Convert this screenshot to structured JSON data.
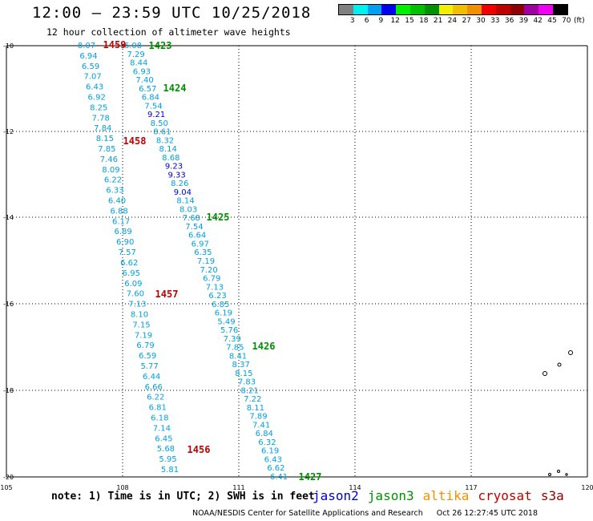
{
  "header": {
    "title": "12:00 — 23:59 UTC 10/25/2018",
    "subtitle": "12 hour collection of altimeter wave heights"
  },
  "legend": {
    "colors": [
      "#808080",
      "#00f0f0",
      "#00a0f0",
      "#0000f0",
      "#00f000",
      "#00c000",
      "#009000",
      "#f0f000",
      "#f0c000",
      "#f09000",
      "#f00000",
      "#c00000",
      "#900000",
      "#a000a0",
      "#f000f0",
      "#000000"
    ],
    "labels": [
      "3",
      "6",
      "9",
      "12",
      "15",
      "18",
      "21",
      "24",
      "27",
      "30",
      "33",
      "36",
      "39",
      "42",
      "45",
      "70",
      "(ft)"
    ]
  },
  "axes": {
    "x_ticks": [
      "105",
      "108",
      "111",
      "114",
      "117",
      "120"
    ],
    "y_ticks": [
      "-10",
      "-12",
      "-14",
      "-16",
      "-18",
      "-20"
    ]
  },
  "tracks": [
    {
      "satellite": "cryosat",
      "values": [
        "8.07",
        "6.94",
        "6.59",
        "7.07",
        "6.43",
        "6.92",
        "8.25",
        "7.78",
        "7.84",
        "8.15",
        "7.85",
        "7.46",
        "8.09",
        "6.22",
        "6.33",
        "6.40",
        "6.88",
        "6.17",
        "6.89",
        "6.90",
        "7.57",
        "6.62",
        "6.95",
        "6.09",
        "7.60",
        "7.13",
        "8.10",
        "7.15",
        "7.19",
        "6.79",
        "6.59",
        "5.77",
        "6.44",
        "6.66",
        "6.22",
        "6.81",
        "6.18",
        "7.14",
        "6.45",
        "5.68",
        "5.95",
        "5.81"
      ]
    },
    {
      "satellite": "jason3",
      "values": [
        "6.08",
        "7.29",
        "8.44",
        "6.93",
        "7.40",
        "6.57",
        "6.84",
        "7.54",
        "9.21",
        "8.50",
        "8.61",
        "8.32",
        "8.14",
        "8.68",
        "9.23",
        "9.33",
        "8.26",
        "9.04",
        "8.14",
        "8.03",
        "7.68",
        "7.54",
        "6.64",
        "6.97",
        "6.35",
        "7.19",
        "7.20",
        "6.79",
        "7.13",
        "6.23",
        "6.85",
        "6.19",
        "5.49",
        "5.76",
        "7.39",
        "7.85",
        "8.41",
        "8.37",
        "8.15",
        "7.83",
        "8.21",
        "7.22",
        "8.11",
        "7.89",
        "7.41",
        "6.84",
        "6.32",
        "6.19",
        "6.43",
        "6.62",
        "6.41"
      ]
    }
  ],
  "time_labels": [
    {
      "text": "1459",
      "satellite": "cryosat"
    },
    {
      "text": "1458",
      "satellite": "cryosat"
    },
    {
      "text": "1457",
      "satellite": "cryosat"
    },
    {
      "text": "1456",
      "satellite": "cryosat"
    },
    {
      "text": "1423",
      "satellite": "jason3"
    },
    {
      "text": "1424",
      "satellite": "jason3"
    },
    {
      "text": "1425",
      "satellite": "jason3"
    },
    {
      "text": "1426",
      "satellite": "jason3"
    },
    {
      "text": "1427",
      "satellite": "jason3"
    }
  ],
  "note": "note: 1) Time is in UTC; 2) SWH is in feet",
  "satellites": [
    {
      "name": "jason2",
      "color": "#0000d8"
    },
    {
      "name": "jason3",
      "color": "#009000"
    },
    {
      "name": "altika",
      "color": "#f09000"
    },
    {
      "name": "cryosat",
      "color": "#c00000"
    },
    {
      "name": "s3a",
      "color": "#900000"
    }
  ],
  "footer": {
    "credit": "NOAA/NESDIS Center for Satellite Applications and Research",
    "timestamp": "Oct 26 12:27:45 UTC 2018"
  }
}
